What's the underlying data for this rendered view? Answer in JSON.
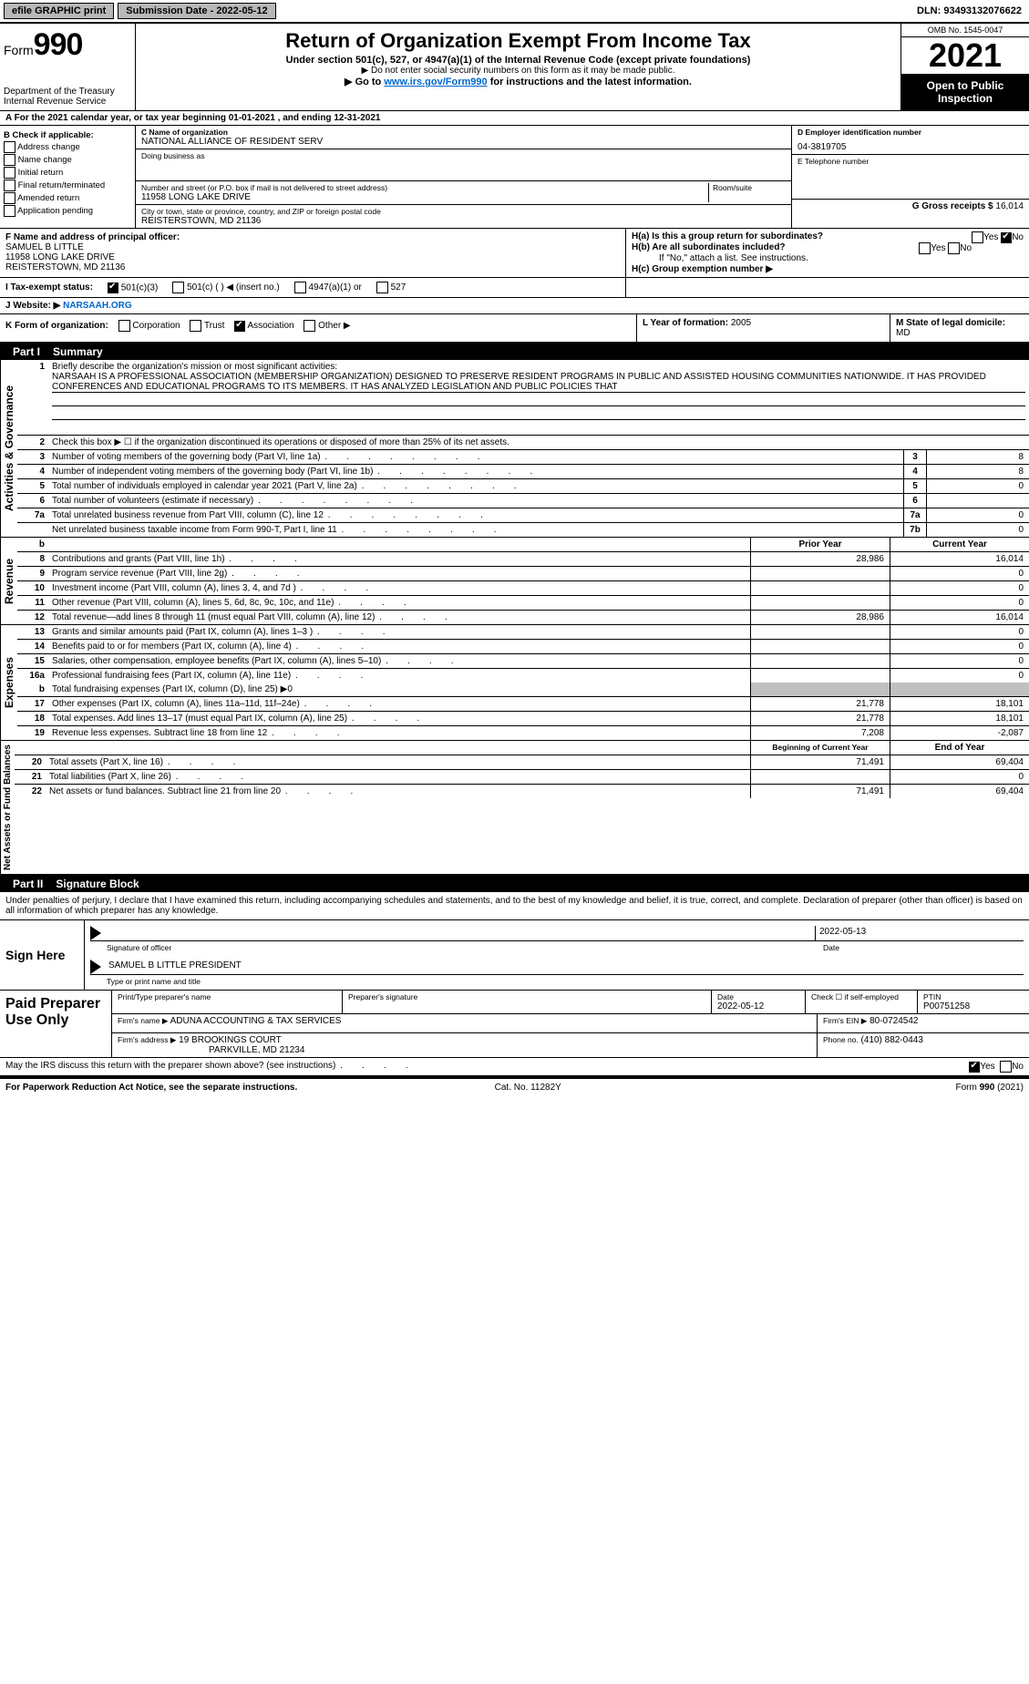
{
  "topbar": {
    "efile": "efile GRAPHIC print",
    "submission_label": "Submission Date - 2022-05-12",
    "dln_label": "DLN: 93493132076622"
  },
  "header": {
    "form_label": "Form",
    "form_number": "990",
    "dept1": "Department of the Treasury",
    "dept2": "Internal Revenue Service",
    "title": "Return of Organization Exempt From Income Tax",
    "subtitle": "Under section 501(c), 527, or 4947(a)(1) of the Internal Revenue Code (except private foundations)",
    "note1": "▶ Do not enter social security numbers on this form as it may be made public.",
    "note2_pre": "▶ Go to ",
    "note2_link": "www.irs.gov/Form990",
    "note2_post": " for instructions and the latest information.",
    "omb": "OMB No. 1545-0047",
    "year": "2021",
    "open_pub": "Open to Public Inspection"
  },
  "section_a": {
    "text": "A For the 2021 calendar year, or tax year beginning 01-01-2021    , and ending 12-31-2021"
  },
  "block_b": {
    "heading": "B Check if applicable:",
    "opts": [
      "Address change",
      "Name change",
      "Initial return",
      "Final return/terminated",
      "Amended return",
      "Application pending"
    ]
  },
  "block_c": {
    "c_label": "C Name of organization",
    "c_val": "NATIONAL ALLIANCE OF RESIDENT SERV",
    "dba_label": "Doing business as",
    "dba_val": "",
    "addr_label": "Number and street (or P.O. box if mail is not delivered to street address)",
    "room_label": "Room/suite",
    "addr_val": "11958 LONG LAKE DRIVE",
    "city_label": "City or town, state or province, country, and ZIP or foreign postal code",
    "city_val": "REISTERSTOWN, MD  21136"
  },
  "block_d": {
    "label": "D Employer identification number",
    "val": "04-3819705"
  },
  "block_e": {
    "label": "E Telephone number",
    "val": ""
  },
  "block_g": {
    "label": "G Gross receipts $",
    "val": "16,014"
  },
  "block_f": {
    "label": "F  Name and address of principal officer:",
    "name": "SAMUEL B LITTLE",
    "addr1": "11958 LONG LAKE DRIVE",
    "addr2": "REISTERSTOWN, MD  21136"
  },
  "block_h": {
    "h_a": "H(a)  Is this a group return for subordinates?",
    "h_b": "H(b)  Are all subordinates included?",
    "h_b2": "If \"No,\" attach a list. See instructions.",
    "h_c": "H(c)  Group exemption number ▶",
    "yes": "Yes",
    "no": "No"
  },
  "block_i": {
    "label": "I  Tax-exempt status:",
    "o1": "501(c)(3)",
    "o2": "501(c) (  ) ◀ (insert no.)",
    "o3": "4947(a)(1) or",
    "o4": "527"
  },
  "block_j": {
    "label": "J  Website: ▶",
    "val": "NARSAAH.ORG"
  },
  "block_k": {
    "label": "K Form of organization:",
    "o1": "Corporation",
    "o2": "Trust",
    "o3": "Association",
    "o4": "Other ▶",
    "l_label": "L Year of formation:",
    "l_val": "2005",
    "m_label": "M State of legal domicile:",
    "m_val": "MD"
  },
  "part1": {
    "hdr_num": "Part I",
    "hdr_title": "Summary",
    "vtab1": "Activities & Governance",
    "vtab2": "Revenue",
    "vtab3": "Expenses",
    "vtab4": "Net Assets or Fund Balances",
    "l1": "Briefly describe the organization's mission or most significant activities:",
    "l1_text": "NARSAAH IS A PROFESSIONAL ASSOCIATION (MEMBERSHIP ORGANIZATION) DESIGNED TO PRESERVE RESIDENT PROGRAMS IN PUBLIC AND ASSISTED HOUSING COMMUNITIES NATIONWIDE. IT HAS PROVIDED CONFERENCES AND EDUCATIONAL PROGRAMS TO ITS MEMBERS. IT HAS ANALYZED LEGISLATION AND PUBLIC POLICIES THAT",
    "l2": "Check this box ▶ ☐  if the organization discontinued its operations or disposed of more than 25% of its net assets.",
    "rows_a": [
      {
        "n": "3",
        "t": "Number of voting members of the governing body (Part VI, line 1a)",
        "box": "3",
        "v": "8"
      },
      {
        "n": "4",
        "t": "Number of independent voting members of the governing body (Part VI, line 1b)",
        "box": "4",
        "v": "8"
      },
      {
        "n": "5",
        "t": "Total number of individuals employed in calendar year 2021 (Part V, line 2a)",
        "box": "5",
        "v": "0"
      },
      {
        "n": "6",
        "t": "Total number of volunteers (estimate if necessary)",
        "box": "6",
        "v": ""
      },
      {
        "n": "7a",
        "t": "Total unrelated business revenue from Part VIII, column (C), line 12",
        "box": "7a",
        "v": "0"
      },
      {
        "n": "",
        "t": "Net unrelated business taxable income from Form 990-T, Part I, line 11",
        "box": "7b",
        "v": "0"
      }
    ],
    "col_py": "Prior Year",
    "col_cy": "Current Year",
    "rows_b": [
      {
        "n": "8",
        "t": "Contributions and grants (Part VIII, line 1h)",
        "py": "28,986",
        "cy": "16,014"
      },
      {
        "n": "9",
        "t": "Program service revenue (Part VIII, line 2g)",
        "py": "",
        "cy": "0"
      },
      {
        "n": "10",
        "t": "Investment income (Part VIII, column (A), lines 3, 4, and 7d )",
        "py": "",
        "cy": "0"
      },
      {
        "n": "11",
        "t": "Other revenue (Part VIII, column (A), lines 5, 6d, 8c, 9c, 10c, and 11e)",
        "py": "",
        "cy": "0"
      },
      {
        "n": "12",
        "t": "Total revenue—add lines 8 through 11 (must equal Part VIII, column (A), line 12)",
        "py": "28,986",
        "cy": "16,014"
      }
    ],
    "rows_c": [
      {
        "n": "13",
        "t": "Grants and similar amounts paid (Part IX, column (A), lines 1–3 )",
        "py": "",
        "cy": "0"
      },
      {
        "n": "14",
        "t": "Benefits paid to or for members (Part IX, column (A), line 4)",
        "py": "",
        "cy": "0"
      },
      {
        "n": "15",
        "t": "Salaries, other compensation, employee benefits (Part IX, column (A), lines 5–10)",
        "py": "",
        "cy": "0"
      },
      {
        "n": "16a",
        "t": "Professional fundraising fees (Part IX, column (A), line 11e)",
        "py": "",
        "cy": "0"
      }
    ],
    "l16b": "Total fundraising expenses (Part IX, column (D), line 25) ▶0",
    "rows_c2": [
      {
        "n": "17",
        "t": "Other expenses (Part IX, column (A), lines 11a–11d, 11f–24e)",
        "py": "21,778",
        "cy": "18,101"
      },
      {
        "n": "18",
        "t": "Total expenses. Add lines 13–17 (must equal Part IX, column (A), line 25)",
        "py": "21,778",
        "cy": "18,101"
      },
      {
        "n": "19",
        "t": "Revenue less expenses. Subtract line 18 from line 12",
        "py": "7,208",
        "cy": "-2,087"
      }
    ],
    "col_boy": "Beginning of Current Year",
    "col_eoy": "End of Year",
    "rows_d": [
      {
        "n": "20",
        "t": "Total assets (Part X, line 16)",
        "py": "71,491",
        "cy": "69,404"
      },
      {
        "n": "21",
        "t": "Total liabilities (Part X, line 26)",
        "py": "",
        "cy": "0"
      },
      {
        "n": "22",
        "t": "Net assets or fund balances. Subtract line 21 from line 20",
        "py": "71,491",
        "cy": "69,404"
      }
    ]
  },
  "part2": {
    "hdr_num": "Part II",
    "hdr_title": "Signature Block",
    "intro": "Under penalties of perjury, I declare that I have examined this return, including accompanying schedules and statements, and to the best of my knowledge and belief, it is true, correct, and complete. Declaration of preparer (other than officer) is based on all information of which preparer has any knowledge.",
    "sign_here": "Sign Here",
    "sig_officer_lbl": "Signature of officer",
    "sig_date": "2022-05-13",
    "date_lbl": "Date",
    "officer_name": "SAMUEL B LITTLE  PRESIDENT",
    "type_lbl": "Type or print name and title",
    "paid": "Paid Preparer Use Only",
    "pp_name_lbl": "Print/Type preparer's name",
    "pp_name": "",
    "pp_sig_lbl": "Preparer's signature",
    "pp_date_lbl": "Date",
    "pp_date": "2022-05-12",
    "pp_check_lbl": "Check ☐ if self-employed",
    "ptin_lbl": "PTIN",
    "ptin": "P00751258",
    "firm_name_lbl": "Firm's name    ▶",
    "firm_name": "ADUNA ACCOUNTING & TAX SERVICES",
    "firm_ein_lbl": "Firm's EIN ▶",
    "firm_ein": "80-0724542",
    "firm_addr_lbl": "Firm's address ▶",
    "firm_addr1": "19 BROOKINGS COURT",
    "firm_addr2": "PARKVILLE, MD  21234",
    "phone_lbl": "Phone no.",
    "phone": "(410) 882-0443",
    "may_irs": "May the IRS discuss this return with the preparer shown above? (see instructions)",
    "yes": "Yes",
    "no": "No"
  },
  "footer": {
    "left": "For Paperwork Reduction Act Notice, see the separate instructions.",
    "mid": "Cat. No. 11282Y",
    "right": "Form 990 (2021)"
  },
  "colors": {
    "link": "#0066cc",
    "grey": "#c0c0c0"
  }
}
